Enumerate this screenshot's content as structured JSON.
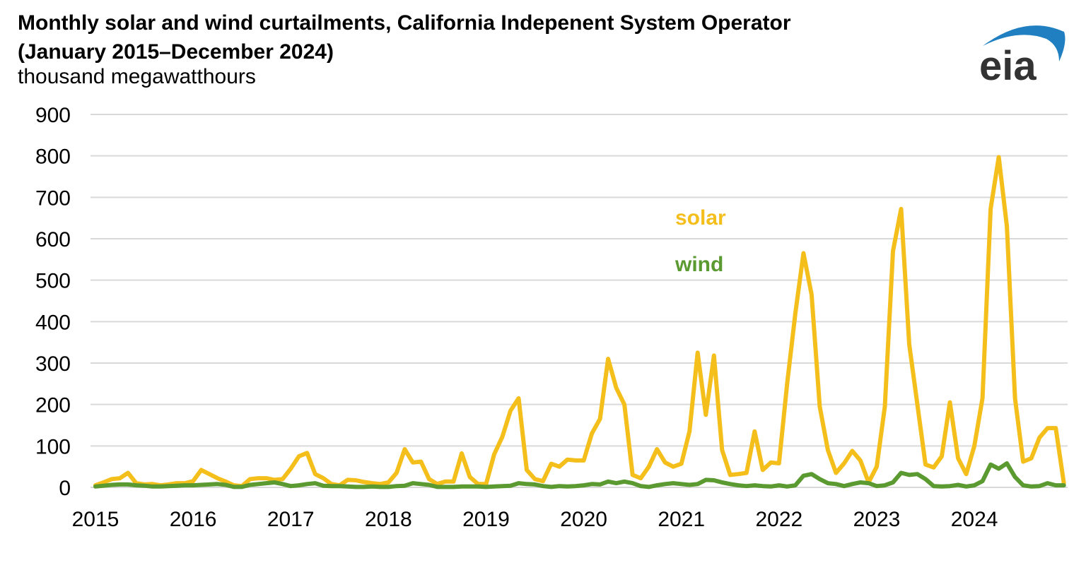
{
  "title_line1": "Monthly solar and wind curtailments, California Indepenent System Operator",
  "title_line2": "(January 2015–December 2024)",
  "units": "thousand megawatthours",
  "logo_text": "eia",
  "chart_data": {
    "type": "line",
    "title": "Monthly solar and wind curtailments, California Indepenent System Operator (January 2015–December 2024)",
    "ylabel": "thousand megawatthours",
    "xlabel": "",
    "x_start": "2015-01",
    "x_end": "2024-12",
    "x_frequency": "monthly",
    "x_ticks": [
      "2015",
      "2016",
      "2017",
      "2018",
      "2019",
      "2020",
      "2021",
      "2022",
      "2023",
      "2024"
    ],
    "y_ticks": [
      0,
      100,
      200,
      300,
      400,
      500,
      600,
      700,
      800,
      900
    ],
    "ylim": [
      0,
      900
    ],
    "grid": "horizontal",
    "legend": "inline labels near center-right",
    "series": [
      {
        "name": "solar",
        "color": "#F4BE1B",
        "values": [
          5,
          12,
          20,
          22,
          35,
          10,
          7,
          8,
          5,
          7,
          10,
          10,
          15,
          42,
          32,
          22,
          14,
          5,
          3,
          20,
          22,
          22,
          18,
          20,
          45,
          75,
          83,
          32,
          22,
          8,
          5,
          18,
          17,
          13,
          10,
          8,
          12,
          35,
          92,
          60,
          62,
          20,
          8,
          14,
          14,
          82,
          25,
          8,
          8,
          80,
          122,
          185,
          215,
          42,
          20,
          15,
          57,
          50,
          67,
          65,
          65,
          130,
          165,
          310,
          240,
          200,
          30,
          22,
          50,
          92,
          60,
          50,
          57,
          135,
          325,
          175,
          318,
          90,
          30,
          32,
          35,
          135,
          42,
          60,
          58,
          250,
          420,
          565,
          465,
          195,
          90,
          35,
          58,
          88,
          65,
          12,
          50,
          195,
          570,
          672,
          345,
          200,
          55,
          48,
          75,
          205,
          70,
          32,
          100,
          215,
          672,
          797,
          630,
          215,
          62,
          70,
          120,
          143,
          143,
          10
        ]
      },
      {
        "name": "wind",
        "color": "#5A9A30",
        "values": [
          2,
          4,
          6,
          7,
          7,
          5,
          4,
          2,
          2,
          3,
          4,
          5,
          5,
          6,
          7,
          8,
          6,
          1,
          1,
          6,
          8,
          10,
          12,
          8,
          3,
          5,
          8,
          10,
          4,
          3,
          3,
          2,
          1,
          1,
          2,
          1,
          1,
          3,
          4,
          10,
          8,
          6,
          1,
          1,
          1,
          2,
          2,
          2,
          1,
          2,
          3,
          4,
          10,
          8,
          7,
          3,
          1,
          3,
          2,
          3,
          5,
          8,
          7,
          14,
          10,
          14,
          10,
          3,
          1,
          5,
          8,
          10,
          8,
          6,
          8,
          18,
          17,
          12,
          8,
          5,
          3,
          5,
          3,
          2,
          5,
          2,
          5,
          28,
          32,
          20,
          10,
          8,
          3,
          8,
          12,
          10,
          3,
          5,
          12,
          35,
          30,
          32,
          20,
          3,
          2,
          3,
          6,
          2,
          5,
          15,
          55,
          45,
          58,
          25,
          5,
          2,
          3,
          10,
          5,
          5
        ]
      }
    ]
  }
}
